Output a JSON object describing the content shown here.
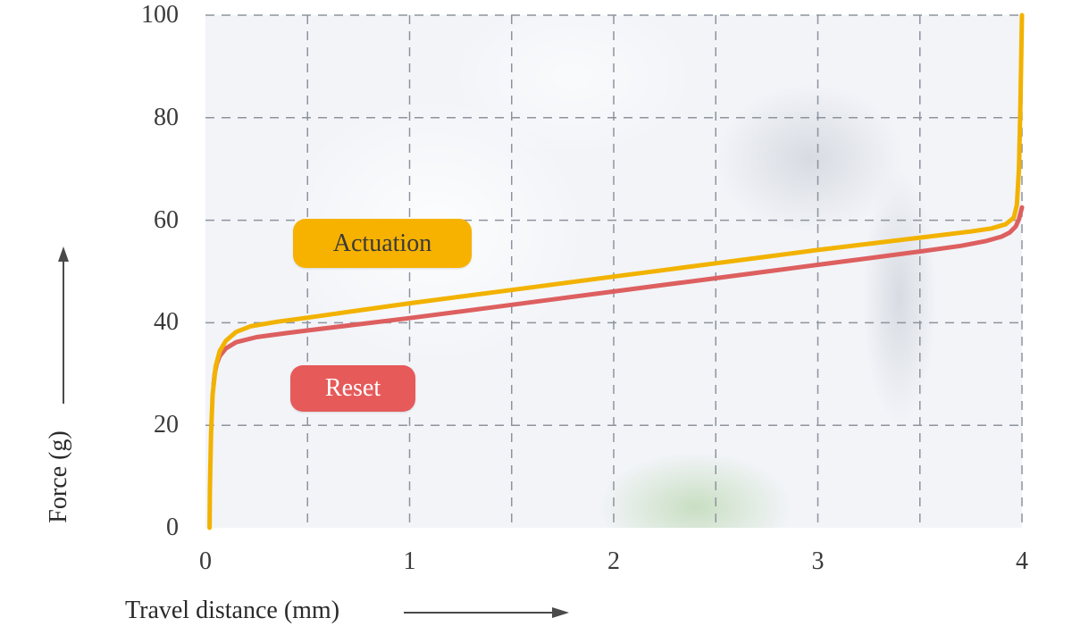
{
  "chart_data": {
    "type": "line",
    "title": "",
    "xlabel": "Travel distance (mm)",
    "ylabel": "Force (g)",
    "xlim": [
      0,
      4
    ],
    "ylim": [
      0,
      100
    ],
    "x_ticks": [
      0,
      1,
      2,
      3,
      4
    ],
    "y_ticks": [
      0,
      20,
      40,
      60,
      80,
      100
    ],
    "grid": true,
    "grid_x": [
      0.5,
      1,
      1.5,
      2,
      2.5,
      3,
      3.5,
      4
    ],
    "grid_y": [
      20,
      40,
      60,
      80,
      100
    ],
    "grid_color": "#8d939d",
    "legend_position": "inline-badges",
    "series": [
      {
        "name": "Actuation",
        "color": "#F2B200",
        "badge_bg": "#F7B200",
        "badge_text": "#3A3A3A",
        "points": [
          [
            0.02,
            0
          ],
          [
            0.022,
            8
          ],
          [
            0.027,
            18
          ],
          [
            0.035,
            26
          ],
          [
            0.05,
            31.5
          ],
          [
            0.07,
            34.5
          ],
          [
            0.1,
            36.5
          ],
          [
            0.15,
            38.2
          ],
          [
            0.22,
            39.3
          ],
          [
            0.35,
            40.2
          ],
          [
            0.5,
            41.0
          ],
          [
            0.75,
            42.4
          ],
          [
            1.0,
            43.8
          ],
          [
            1.25,
            45.1
          ],
          [
            1.5,
            46.4
          ],
          [
            1.75,
            47.7
          ],
          [
            2.0,
            49.0
          ],
          [
            2.25,
            50.3
          ],
          [
            2.5,
            51.6
          ],
          [
            2.75,
            52.9
          ],
          [
            3.0,
            54.2
          ],
          [
            3.25,
            55.4
          ],
          [
            3.5,
            56.6
          ],
          [
            3.75,
            57.8
          ],
          [
            3.85,
            58.4
          ],
          [
            3.92,
            59.2
          ],
          [
            3.96,
            60.5
          ],
          [
            3.975,
            63
          ],
          [
            3.985,
            70
          ],
          [
            3.992,
            82
          ],
          [
            3.997,
            93
          ],
          [
            4.0,
            100
          ]
        ]
      },
      {
        "name": "Reset",
        "color": "#DD5F5F",
        "badge_bg": "#E65A5A",
        "badge_text": "#FFFFFF",
        "points": [
          [
            0.04,
            28
          ],
          [
            0.045,
            30
          ],
          [
            0.055,
            32
          ],
          [
            0.07,
            33.5
          ],
          [
            0.1,
            35.0
          ],
          [
            0.15,
            36.2
          ],
          [
            0.25,
            37.2
          ],
          [
            0.4,
            38.0
          ],
          [
            0.5,
            38.5
          ],
          [
            0.75,
            39.7
          ],
          [
            1.0,
            40.9
          ],
          [
            1.25,
            42.2
          ],
          [
            1.5,
            43.5
          ],
          [
            1.75,
            44.8
          ],
          [
            2.0,
            46.1
          ],
          [
            2.25,
            47.4
          ],
          [
            2.5,
            48.7
          ],
          [
            2.75,
            50.0
          ],
          [
            3.0,
            51.3
          ],
          [
            3.25,
            52.6
          ],
          [
            3.5,
            53.9
          ],
          [
            3.7,
            55.0
          ],
          [
            3.82,
            55.9
          ],
          [
            3.9,
            56.8
          ],
          [
            3.94,
            57.6
          ],
          [
            3.97,
            58.8
          ],
          [
            3.985,
            60.2
          ],
          [
            4.0,
            62.5
          ]
        ]
      }
    ]
  }
}
